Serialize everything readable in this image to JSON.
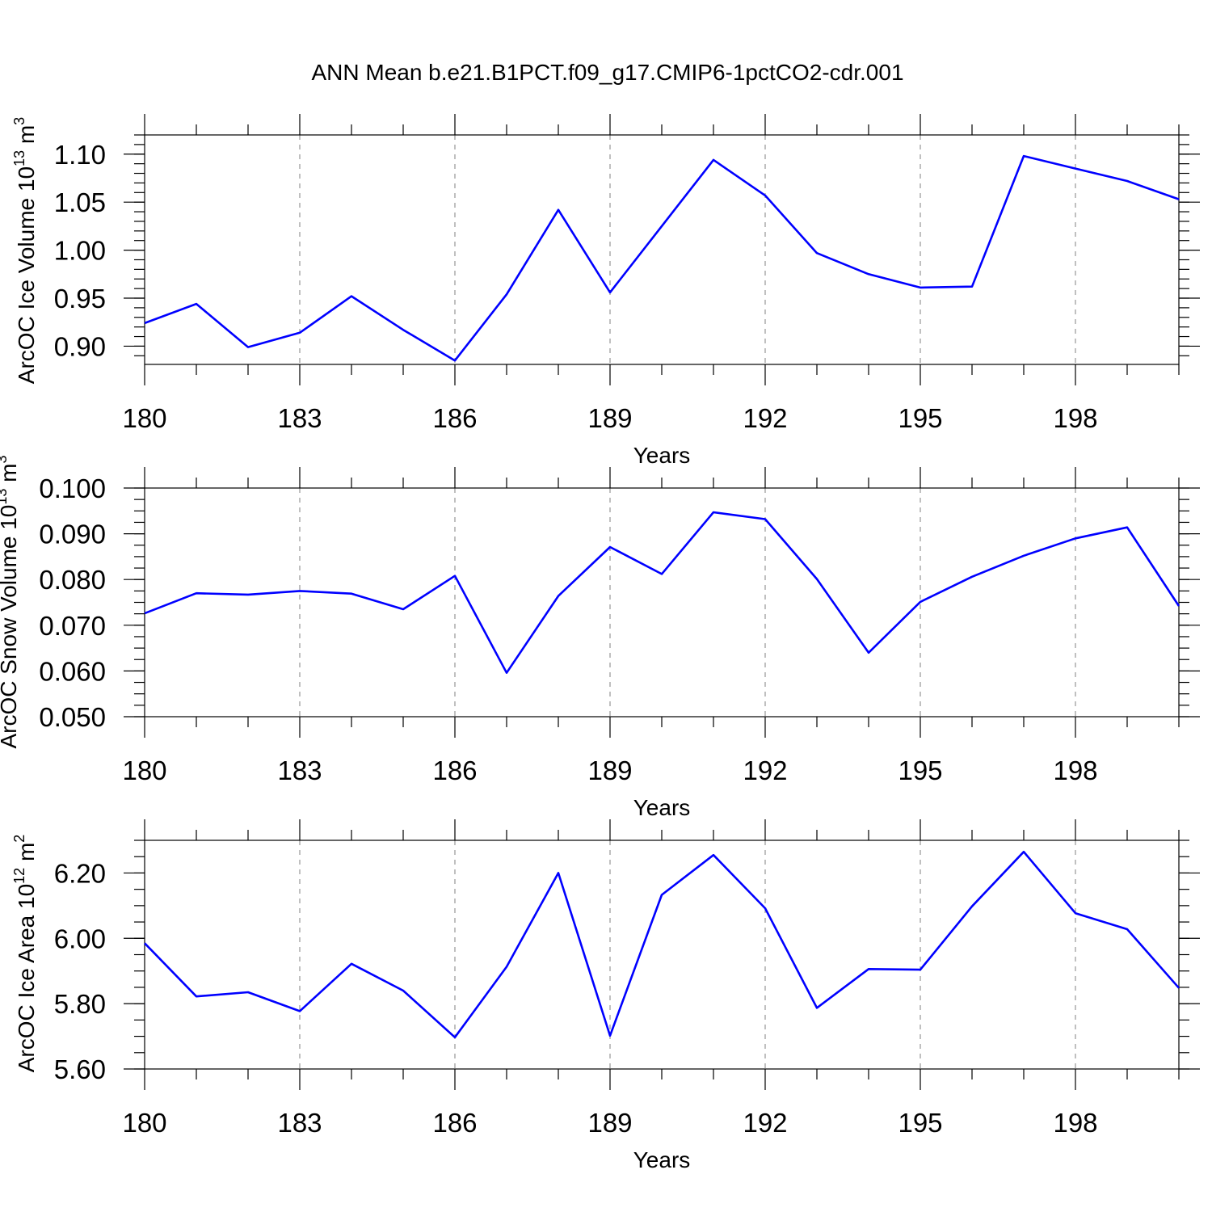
{
  "title": "ANN Mean b.e21.B1PCT.f09_g17.CMIP6-1pctCO2-cdr.001",
  "colors": {
    "line": "#0000ff",
    "axes": "#000000",
    "grid": "#808080"
  },
  "chart_data": [
    {
      "type": "line",
      "ylabel": {
        "main": "ArcOC Ice Volume 10",
        "exp": "13",
        "unit": " m",
        "unitexp": "3"
      },
      "xlabel": "Years",
      "xlim": [
        180,
        200
      ],
      "ylim": [
        0.881,
        1.12
      ],
      "xticks": [
        180,
        183,
        186,
        189,
        192,
        195,
        198
      ],
      "xtick_labels": [
        "180",
        "183",
        "186",
        "189",
        "192",
        "195",
        "198"
      ],
      "yticks": [
        0.9,
        0.95,
        1.0,
        1.05,
        1.1
      ],
      "ytick_labels": [
        "0.90",
        "0.95",
        "1.00",
        "1.05",
        "1.10"
      ],
      "grid": "vertical dashed at major x ticks",
      "x": [
        180,
        181,
        182,
        183,
        184,
        185,
        186,
        187,
        188,
        189,
        190,
        191,
        192,
        193,
        194,
        195,
        196,
        197,
        198,
        199,
        200
      ],
      "values": [
        0.924,
        0.944,
        0.899,
        0.914,
        0.952,
        0.917,
        0.885,
        0.954,
        1.042,
        0.956,
        1.025,
        1.094,
        1.057,
        0.997,
        0.975,
        0.961,
        0.962,
        1.098,
        1.085,
        1.072,
        1.053
      ]
    },
    {
      "type": "line",
      "ylabel": {
        "main": "ArcOC Snow Volume 10",
        "exp": "13",
        "unit": " m",
        "unitexp": "3"
      },
      "xlabel": "Years",
      "xlim": [
        180,
        200
      ],
      "ylim": [
        0.05,
        0.1
      ],
      "xticks": [
        180,
        183,
        186,
        189,
        192,
        195,
        198
      ],
      "xtick_labels": [
        "180",
        "183",
        "186",
        "189",
        "192",
        "195",
        "198"
      ],
      "yticks": [
        0.05,
        0.06,
        0.07,
        0.08,
        0.09,
        0.1
      ],
      "ytick_labels": [
        "0.050",
        "0.060",
        "0.070",
        "0.080",
        "0.090",
        "0.100"
      ],
      "grid": "vertical dashed at major x ticks",
      "x": [
        180,
        181,
        182,
        183,
        184,
        185,
        186,
        187,
        188,
        189,
        190,
        191,
        192,
        193,
        194,
        195,
        196,
        197,
        198,
        199,
        200
      ],
      "values": [
        0.0726,
        0.077,
        0.0767,
        0.0775,
        0.0769,
        0.0735,
        0.0808,
        0.0596,
        0.0764,
        0.0871,
        0.0812,
        0.0947,
        0.0932,
        0.0801,
        0.064,
        0.0751,
        0.0806,
        0.0852,
        0.089,
        0.0914,
        0.0742
      ]
    },
    {
      "type": "line",
      "ylabel": {
        "main": "ArcOC Ice Area 10",
        "exp": "12",
        "unit": " m",
        "unitexp": "2"
      },
      "xlabel": "Years",
      "xlim": [
        180,
        200
      ],
      "ylim": [
        5.6,
        6.3
      ],
      "xticks": [
        180,
        183,
        186,
        189,
        192,
        195,
        198
      ],
      "xtick_labels": [
        "180",
        "183",
        "186",
        "189",
        "192",
        "195",
        "198"
      ],
      "yticks": [
        5.6,
        5.8,
        6.0,
        6.2
      ],
      "ytick_labels": [
        "5.60",
        "5.80",
        "6.00",
        "6.20"
      ],
      "grid": "vertical dashed at major x ticks",
      "x": [
        180,
        181,
        182,
        183,
        184,
        185,
        186,
        187,
        188,
        189,
        190,
        191,
        192,
        193,
        194,
        195,
        196,
        197,
        198,
        199,
        200
      ],
      "values": [
        5.985,
        5.822,
        5.835,
        5.777,
        5.922,
        5.84,
        5.697,
        5.913,
        6.2,
        5.702,
        6.133,
        6.255,
        6.092,
        5.787,
        5.906,
        5.904,
        6.098,
        6.265,
        6.077,
        6.028,
        5.848
      ]
    }
  ]
}
